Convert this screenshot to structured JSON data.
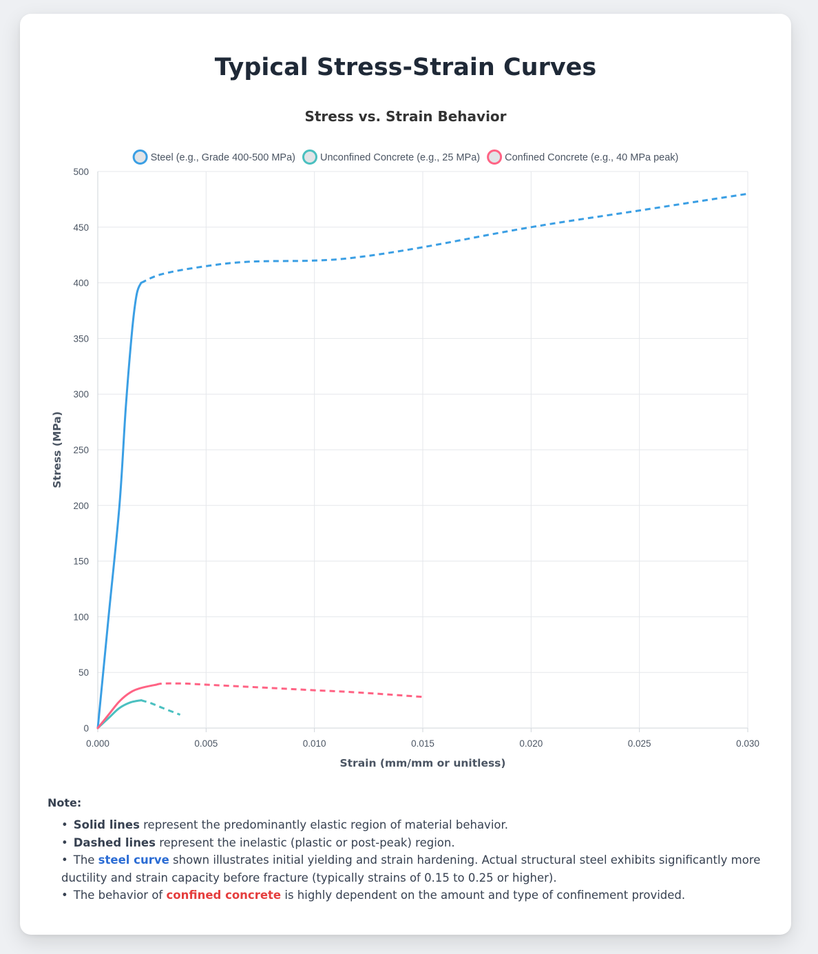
{
  "page": {
    "title": "Typical Stress-Strain Curves"
  },
  "chart_data": {
    "type": "line",
    "title": "Stress vs. Strain Behavior",
    "xlabel": "Strain (mm/mm or unitless)",
    "ylabel": "Stress (MPa)",
    "xlim": [
      0,
      0.03
    ],
    "ylim": [
      0,
      500
    ],
    "xticks": [
      "0.000",
      "0.005",
      "0.010",
      "0.015",
      "0.020",
      "0.025",
      "0.030"
    ],
    "yticks": [
      "0",
      "50",
      "100",
      "150",
      "200",
      "250",
      "300",
      "350",
      "400",
      "450",
      "500"
    ],
    "grid": true,
    "legend_position": "top",
    "series": [
      {
        "name": "Steel (e.g., Grade 400-500 MPa)",
        "color": "#3b9fe4",
        "elastic": [
          [
            0,
            0
          ],
          [
            0.0005,
            100
          ],
          [
            0.001,
            200
          ],
          [
            0.0013,
            290
          ],
          [
            0.0016,
            360
          ],
          [
            0.0018,
            390
          ],
          [
            0.002,
            400
          ]
        ],
        "inelastic": [
          [
            0.002,
            400
          ],
          [
            0.003,
            408
          ],
          [
            0.005,
            415
          ],
          [
            0.007,
            419
          ],
          [
            0.01,
            420
          ],
          [
            0.012,
            423
          ],
          [
            0.015,
            432
          ],
          [
            0.02,
            450
          ],
          [
            0.025,
            465
          ],
          [
            0.03,
            480
          ]
        ]
      },
      {
        "name": "Unconfined Concrete (e.g., 25 MPa)",
        "color": "#4bc0c0",
        "elastic": [
          [
            0,
            0
          ],
          [
            0.0005,
            9
          ],
          [
            0.001,
            18
          ],
          [
            0.0015,
            23
          ],
          [
            0.002,
            25
          ]
        ],
        "inelastic": [
          [
            0.002,
            25
          ],
          [
            0.0025,
            22
          ],
          [
            0.003,
            18
          ],
          [
            0.0038,
            12
          ]
        ]
      },
      {
        "name": "Confined Concrete (e.g., 40 MPa peak)",
        "color": "#ff6384",
        "elastic": [
          [
            0,
            0
          ],
          [
            0.0005,
            12
          ],
          [
            0.001,
            24
          ],
          [
            0.0015,
            32
          ],
          [
            0.002,
            36
          ],
          [
            0.0027,
            39
          ]
        ],
        "inelastic": [
          [
            0.0027,
            39
          ],
          [
            0.003,
            40
          ],
          [
            0.004,
            40
          ],
          [
            0.005,
            39
          ],
          [
            0.008,
            36
          ],
          [
            0.01,
            34
          ],
          [
            0.012,
            32
          ],
          [
            0.015,
            28
          ]
        ]
      }
    ]
  },
  "notes": {
    "heading": "Note:",
    "item1_bold": "Solid lines",
    "item1_rest": " represent the predominantly elastic region of material behavior.",
    "item2_bold": "Dashed lines",
    "item2_rest": " represent the inelastic (plastic or post-peak) region.",
    "item3_pre": "The ",
    "item3_highlight": "steel curve",
    "item3_rest": " shown illustrates initial yielding and strain hardening. Actual structural steel exhibits significantly more ductility and strain capacity before fracture (typically strains of 0.15 to 0.25 or higher).",
    "item4_pre": "The behavior of ",
    "item4_highlight": "confined concrete",
    "item4_rest": " is highly dependent on the amount and type of confinement provided."
  }
}
